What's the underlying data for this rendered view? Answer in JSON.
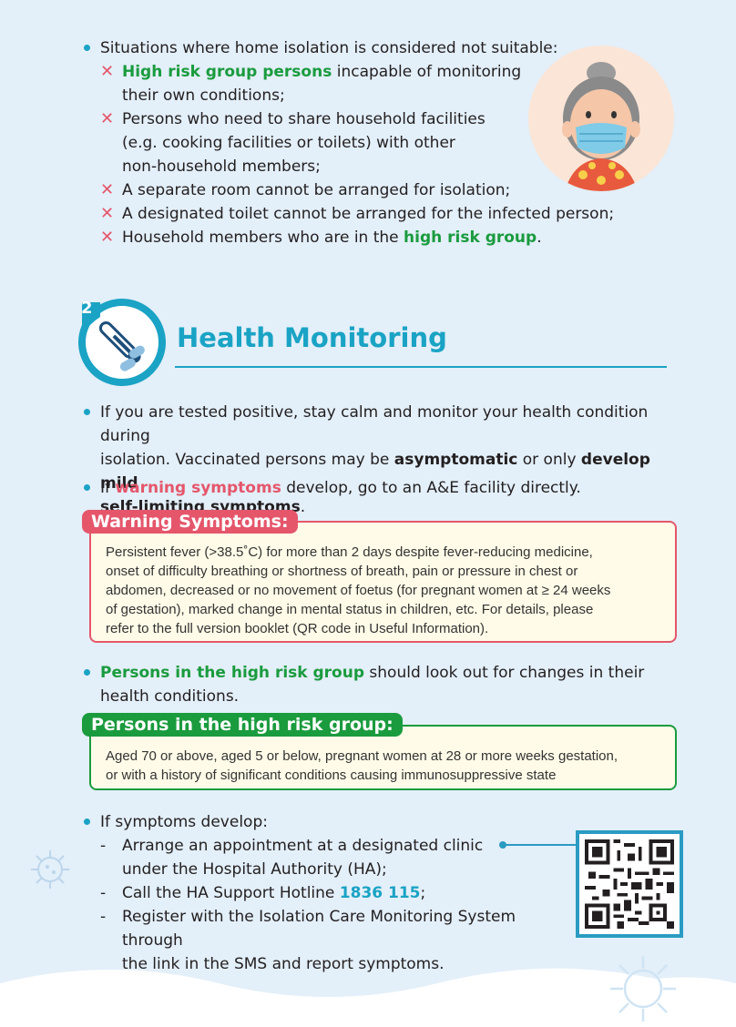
{
  "section1": {
    "intro": "Situations where home isolation is considered not suitable:",
    "items": [
      {
        "parts": [
          {
            "t": "High risk group persons",
            "c": "green"
          },
          {
            "t": " incapable of monitoring",
            "c": ""
          }
        ],
        "line2": "their own conditions;"
      },
      {
        "parts": [
          {
            "t": "Persons who need to share household facilities",
            "c": ""
          }
        ],
        "line2": "(e.g. cooking facilities or toilets) with other",
        "line3": "non-household members;"
      },
      {
        "parts": [
          {
            "t": "A separate room cannot be arranged for isolation;",
            "c": ""
          }
        ]
      },
      {
        "parts": [
          {
            "t": "A designated toilet cannot be arranged for the infected person;",
            "c": ""
          }
        ]
      },
      {
        "parts": [
          {
            "t": "Household members who are in the ",
            "c": ""
          },
          {
            "t": "high risk group",
            "c": "green"
          },
          {
            "t": ".",
            "c": ""
          }
        ]
      }
    ],
    "x_mark": "✕"
  },
  "section2": {
    "number": "2",
    "title": "Health Monitoring",
    "p1_a": "If you are tested positive, stay calm and monitor your health condition during",
    "p1_b": "isolation. Vaccinated persons may be ",
    "p1_b_bold": "asymptomatic",
    "p1_b_c": " or only ",
    "p1_b_bold2": "develop mild",
    "p1_c_bold": "self-limiting symptoms",
    "p1_c": ".",
    "p2_a": "If ",
    "p2_red": "warning symptoms",
    "p2_b": " develop, go to an A&E facility directly.",
    "warn_tag": "Warning Symptoms:",
    "warn_lines": [
      "Persistent fever (>38.5˚C) for more than 2 days despite fever-reducing medicine,",
      "onset of difficulty breathing or shortness of breath, pain or pressure in chest or",
      "abdomen, decreased or no movement of foetus (for pregnant women at ≥ 24 weeks",
      "of gestation), marked change in mental status in children, etc. For details, please",
      "refer to the full version booklet (QR code in Useful Information)."
    ],
    "p3_green": "Persons in the high risk group",
    "p3_a": " should look out for changes in their",
    "p3_b": "health conditions.",
    "risk_tag": "Persons in the high risk group:",
    "risk_lines": [
      "Aged 70 or above, aged 5 or below, pregnant women at 28 or more weeks gestation,",
      "or with a history of significant conditions causing immunosuppressive state"
    ],
    "p4": "If symptoms develop:",
    "steps": {
      "s1a": "Arrange an appointment at a designated clinic",
      "s1b": "under the Hospital Authority (HA);",
      "s2a": "Call the HA Support Hotline ",
      "s2_phone": "1836 115",
      "s2b": ";",
      "s3a": "Register with the Isolation Care Monitoring System through",
      "s3b": "the link in the SMS and report symptoms."
    }
  },
  "colors": {
    "teal": "#1aa3c4",
    "green": "#1a9b3e",
    "red": "#e5566b",
    "background": "#e3eff9"
  }
}
